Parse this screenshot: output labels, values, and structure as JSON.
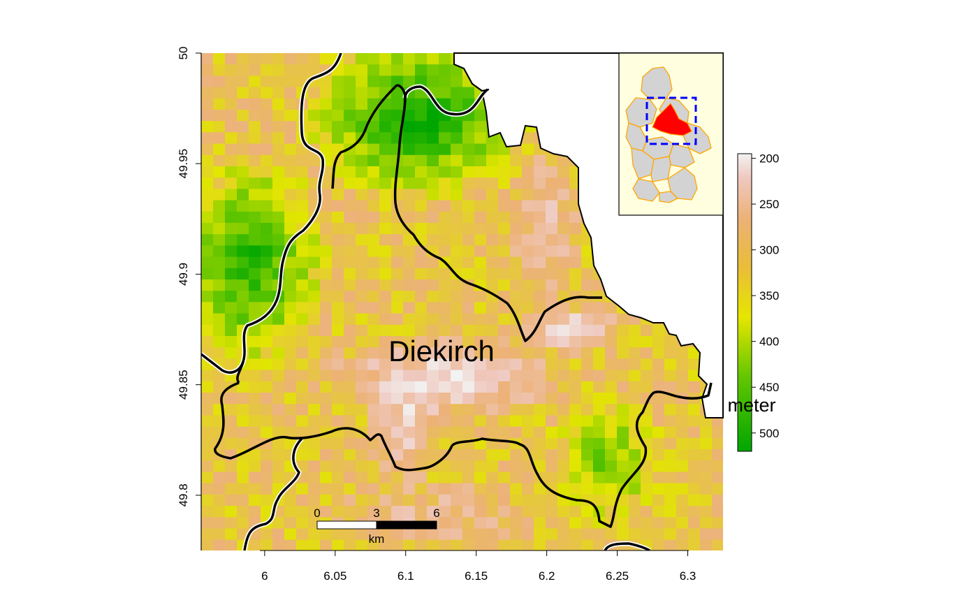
{
  "map": {
    "region_label": "Diekirch",
    "x_axis_ticks": [
      "6",
      "6.05",
      "6.1",
      "6.15",
      "6.2",
      "6.25",
      "6.3"
    ],
    "y_axis_ticks": [
      "49.8",
      "49.85",
      "49.9",
      "49.95",
      "50"
    ],
    "x_range": [
      5.955,
      6.325
    ],
    "y_range": [
      49.775,
      50.0
    ],
    "colors": {
      "high_elevation": "#00a600",
      "mid_elevation": "#e6e600",
      "low_mid_elevation": "#e9b84a",
      "low_elevation": "#f2f2f2",
      "boundary": "#000000",
      "inset_background": "#ffffe0",
      "inset_region_fill": "#d3d3d3",
      "inset_region_border": "#ffa500",
      "inset_highlight": "#ff0000",
      "inset_bbox": "#0000ff"
    }
  },
  "scale_bar": {
    "labels": [
      "0",
      "3",
      "6"
    ],
    "unit": "km"
  },
  "legend": {
    "title": "meter",
    "ticks": [
      "200",
      "250",
      "300",
      "350",
      "400",
      "450",
      "500"
    ],
    "range": [
      195,
      520
    ]
  },
  "inset": {
    "type": "locator map"
  }
}
